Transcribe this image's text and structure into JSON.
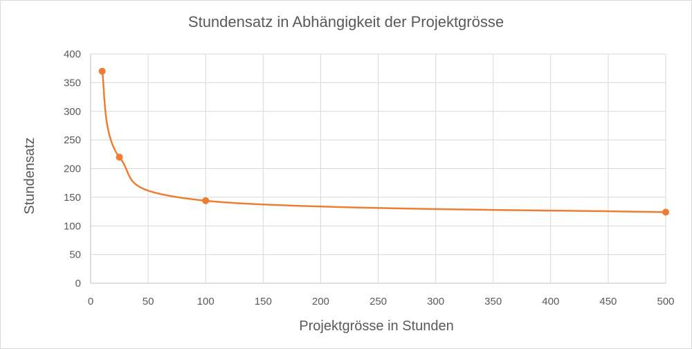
{
  "chart_data": {
    "type": "scatter",
    "title": "Stundensatz in Abhängigkeit der Projektgrösse",
    "xlabel": "Projektgrösse in Stunden",
    "ylabel": "Stundensatz",
    "xlim": [
      0,
      500
    ],
    "ylim": [
      0,
      400
    ],
    "x_ticks": [
      0,
      50,
      100,
      150,
      200,
      250,
      300,
      350,
      400,
      450,
      500
    ],
    "y_ticks": [
      0,
      50,
      100,
      150,
      200,
      250,
      300,
      350,
      400
    ],
    "grid": true,
    "smooth_line": true,
    "series": [
      {
        "color": "#ed7d31",
        "x": [
          10,
          25,
          100,
          500
        ],
        "y": [
          370,
          220,
          144,
          124
        ]
      }
    ]
  }
}
